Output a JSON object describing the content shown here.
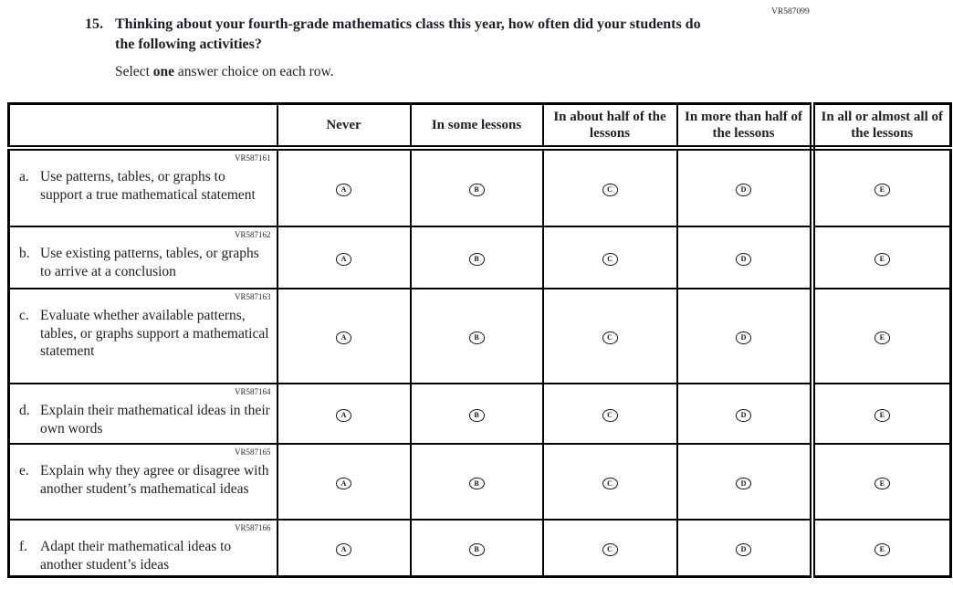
{
  "colors": {
    "ink": "#1d1d27",
    "border": "#000000",
    "background": "#ffffff"
  },
  "page": {
    "code_top": "VR587099",
    "question_number": "15.",
    "question_text": "Thinking about your fourth-grade mathematics class this year, how often did your students do the following activities?",
    "instruction_prefix": "Select ",
    "instruction_bold": "one",
    "instruction_suffix": " answer choice on each row."
  },
  "table": {
    "columns": [
      "Never",
      "In some lessons",
      "In about half of the lessons",
      "In more than half of the lessons",
      "In all or almost all of the lessons"
    ],
    "letters": [
      "A",
      "B",
      "C",
      "D",
      "E"
    ],
    "rows": [
      {
        "code": "VR587161",
        "letter": "a.",
        "text": "Use patterns, tables, or graphs to support a true mathematical statement"
      },
      {
        "code": "VR587162",
        "letter": "b.",
        "text": "Use existing patterns, tables, or graphs to arrive at a conclusion"
      },
      {
        "code": "VR587163",
        "letter": "c.",
        "text": "Evaluate whether available patterns, tables, or graphs support a mathematical statement"
      },
      {
        "code": "VR587164",
        "letter": "d.",
        "text": "Explain their mathematical ideas in their own words"
      },
      {
        "code": "VR587165",
        "letter": "e.",
        "text": "Explain why they agree or disagree with another student’s mathematical ideas"
      },
      {
        "code": "VR587166",
        "letter": "f.",
        "text": "Adapt their mathematical ideas to another student’s ideas"
      }
    ]
  }
}
